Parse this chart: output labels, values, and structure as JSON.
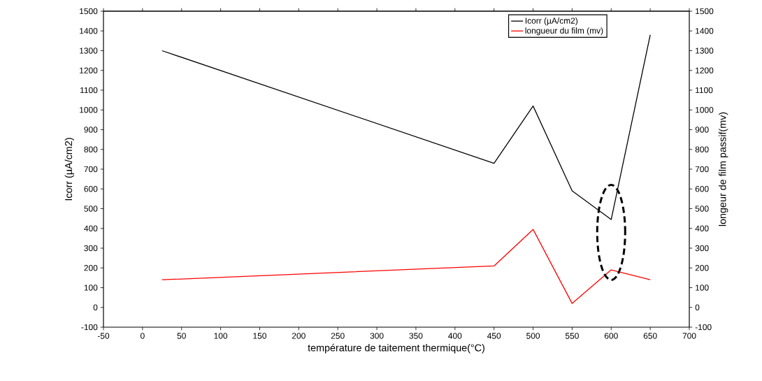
{
  "chart_data": {
    "type": "line",
    "xlabel": "température de taitement thermique(°C)",
    "ylabel": "Icorr (µA/cm2)",
    "y2label": "longeur de film passif(mv)",
    "x": [
      25,
      450,
      500,
      550,
      600,
      650
    ],
    "series": [
      {
        "name": "Icorr (µA/cm2)",
        "color": "#000000",
        "values": [
          1300,
          730,
          1020,
          590,
          445,
          1380
        ]
      },
      {
        "name": "longueur du film (mv)",
        "color": "#ff0000",
        "axis": "y2",
        "values": [
          140,
          210,
          395,
          20,
          190,
          140
        ]
      }
    ],
    "xlim": [
      -50,
      700
    ],
    "xticks": [
      -50,
      0,
      50,
      100,
      150,
      200,
      250,
      300,
      350,
      400,
      450,
      500,
      550,
      600,
      650,
      700
    ],
    "ylim": [
      -100,
      1500
    ],
    "yticks": [
      -100,
      0,
      100,
      200,
      300,
      400,
      500,
      600,
      700,
      800,
      900,
      1000,
      1100,
      1200,
      1300,
      1400,
      1500
    ],
    "y2lim": [
      -100,
      1500
    ],
    "y2ticks": [
      -100,
      0,
      100,
      200,
      300,
      400,
      500,
      600,
      700,
      800,
      900,
      1000,
      1100,
      1200,
      1300,
      1400,
      1500
    ],
    "legend": "top right",
    "grid": false,
    "marker": "none",
    "line_style": "solid"
  }
}
